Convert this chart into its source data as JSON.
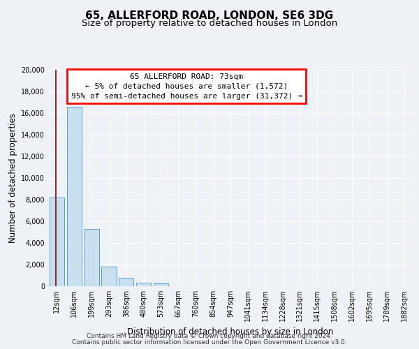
{
  "title": "65, ALLERFORD ROAD, LONDON, SE6 3DG",
  "subtitle": "Size of property relative to detached houses in London",
  "xlabel": "Distribution of detached houses by size in London",
  "ylabel": "Number of detached properties",
  "bar_labels": [
    "12sqm",
    "106sqm",
    "199sqm",
    "293sqm",
    "386sqm",
    "480sqm",
    "573sqm",
    "667sqm",
    "760sqm",
    "854sqm",
    "947sqm",
    "1041sqm",
    "1134sqm",
    "1228sqm",
    "1321sqm",
    "1415sqm",
    "1508sqm",
    "1602sqm",
    "1695sqm",
    "1789sqm",
    "1882sqm"
  ],
  "bar_values": [
    8200,
    16600,
    5300,
    1800,
    750,
    300,
    270,
    0,
    0,
    0,
    0,
    0,
    0,
    0,
    0,
    0,
    0,
    0,
    0,
    0,
    0
  ],
  "bar_color": "#c8dff0",
  "bar_edge_color": "#5a9fd4",
  "annotation_box_text": "65 ALLERFORD ROAD: 73sqm\n← 5% of detached houses are smaller (1,572)\n95% of semi-detached houses are larger (31,372) →",
  "ylim": [
    0,
    20000
  ],
  "yticks": [
    0,
    2000,
    4000,
    6000,
    8000,
    10000,
    12000,
    14000,
    16000,
    18000,
    20000
  ],
  "background_color": "#eef2f7",
  "grid_color": "#ffffff",
  "footer_line1": "Contains HM Land Registry data © Crown copyright and database right 2024.",
  "footer_line2": "Contains public sector information licensed under the Open Government Licence v3.0.",
  "title_fontsize": 11,
  "subtitle_fontsize": 9.5,
  "axis_label_fontsize": 8.5,
  "tick_fontsize": 7,
  "annotation_fontsize": 8,
  "footer_fontsize": 6.5,
  "red_line_x": -0.07
}
